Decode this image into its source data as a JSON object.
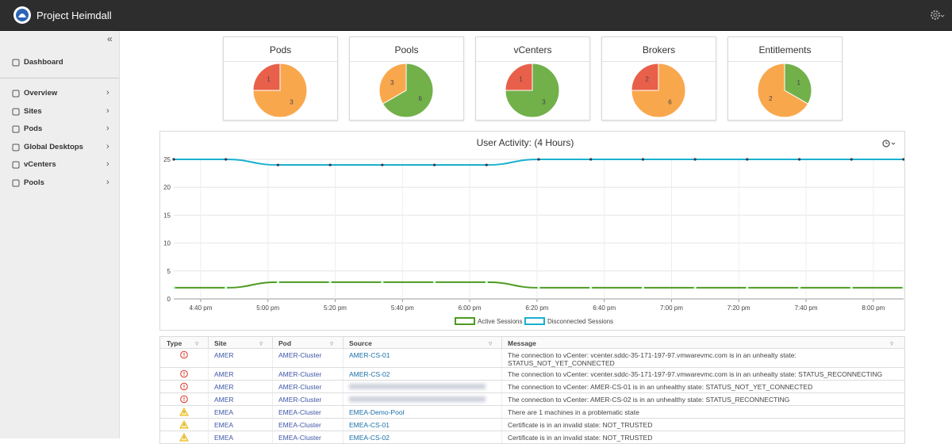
{
  "header": {
    "title": "Project Heimdall"
  },
  "sidebar": {
    "items": [
      "Dashboard",
      "Overview",
      "Sites",
      "Pods",
      "Global Desktops",
      "vCenters",
      "Pools"
    ]
  },
  "cards": [
    {
      "title": "Pods",
      "type": "pie",
      "values": [
        3,
        1
      ],
      "colors": [
        "#f9a74d",
        "#e8604a"
      ]
    },
    {
      "title": "Pools",
      "type": "pie",
      "values": [
        6,
        3
      ],
      "colors": [
        "#72b04a",
        "#f9a74d"
      ]
    },
    {
      "title": "vCenters",
      "type": "pie",
      "values": [
        3,
        1
      ],
      "colors": [
        "#72b04a",
        "#e8604a"
      ]
    },
    {
      "title": "Brokers",
      "type": "pie",
      "values": [
        6,
        2
      ],
      "colors": [
        "#f9a74d",
        "#e8604a"
      ]
    },
    {
      "title": "Entitlements",
      "type": "pie",
      "values": [
        1,
        2
      ],
      "colors": [
        "#72b04a",
        "#f9a74d"
      ]
    }
  ],
  "activity_chart": {
    "type": "line",
    "title": "User Activity: (4 Hours)",
    "x": [
      992,
      1007.5,
      1023,
      1038.5,
      1054,
      1069.5,
      1085,
      1100.5,
      1116,
      1131.5,
      1147,
      1162.5,
      1178,
      1193.5,
      1209
    ],
    "series": [
      {
        "name": "Active Sessions",
        "color": "#4e9a22",
        "values": [
          2,
          2,
          3,
          3,
          3,
          3,
          3,
          2,
          2,
          2,
          2,
          2,
          2,
          2,
          2
        ]
      },
      {
        "name": "Disconnected Sessions",
        "color": "#1ab0cf",
        "values": [
          25,
          25,
          24,
          24,
          24,
          24,
          24,
          25,
          25,
          25,
          25,
          25,
          25,
          25,
          25
        ]
      }
    ],
    "xlim": [
      992,
      1209
    ],
    "xticks": [
      {
        "value": 1000,
        "label": "4:40 pm"
      },
      {
        "value": 1020,
        "label": "5:00 pm"
      },
      {
        "value": 1040,
        "label": "5:20 pm"
      },
      {
        "value": 1060,
        "label": "5:40 pm"
      },
      {
        "value": 1080,
        "label": "6:00 pm"
      },
      {
        "value": 1100,
        "label": "6:20 pm"
      },
      {
        "value": 1120,
        "label": "6:40 pm"
      },
      {
        "value": 1140,
        "label": "7:00 pm"
      },
      {
        "value": 1160,
        "label": "7:20 pm"
      },
      {
        "value": 1180,
        "label": "7:40 pm"
      },
      {
        "value": 1200,
        "label": "8:00 pm"
      }
    ],
    "ylim": [
      0,
      25
    ],
    "yticks": [
      0,
      5,
      10,
      15,
      20,
      25
    ],
    "grid": true
  },
  "table": {
    "columns": [
      "Type",
      "Site",
      "Pod",
      "Source",
      "Message"
    ],
    "rows": [
      {
        "type": "error",
        "site": "AMER",
        "pod": "AMER-Cluster",
        "source": "AMER-CS-01",
        "message": "The connection to vCenter: vcenter.sddc-35-171-197-97.vmwarevmc.com is in an unhealty state: STATUS_NOT_YET_CONNECTED"
      },
      {
        "type": "error",
        "site": "AMER",
        "pod": "AMER-Cluster",
        "source": "AMER-CS-02",
        "message": "The connection to vCenter: vcenter.sddc-35-171-197-97.vmwarevmc.com is in an unhealty state: STATUS_RECONNECTING"
      },
      {
        "type": "error",
        "site": "AMER",
        "pod": "AMER-Cluster",
        "message": "The connection to vCenter: AMER-CS-01 is in an unhealthy state: STATUS_NOT_YET_CONNECTED"
      },
      {
        "type": "error",
        "site": "AMER",
        "pod": "AMER-Cluster",
        "message": "The connection to vCenter: AMER-CS-02 is in an unhealthy state: STATUS_RECONNECTING"
      },
      {
        "type": "warning",
        "site": "EMEA",
        "pod": "EMEA-Cluster",
        "source": "EMEA-Demo-Pool",
        "message": "There are 1 machines in a problematic state"
      },
      {
        "type": "warning",
        "site": "EMEA",
        "pod": "EMEA-Cluster",
        "source": "EMEA-CS-01",
        "message": "Certificate is in an invalid state: NOT_TRUSTED"
      },
      {
        "type": "warning",
        "site": "EMEA",
        "pod": "EMEA-Cluster",
        "source": "EMEA-CS-02",
        "message": "Certificate is in an invalid state: NOT_TRUSTED"
      }
    ]
  }
}
